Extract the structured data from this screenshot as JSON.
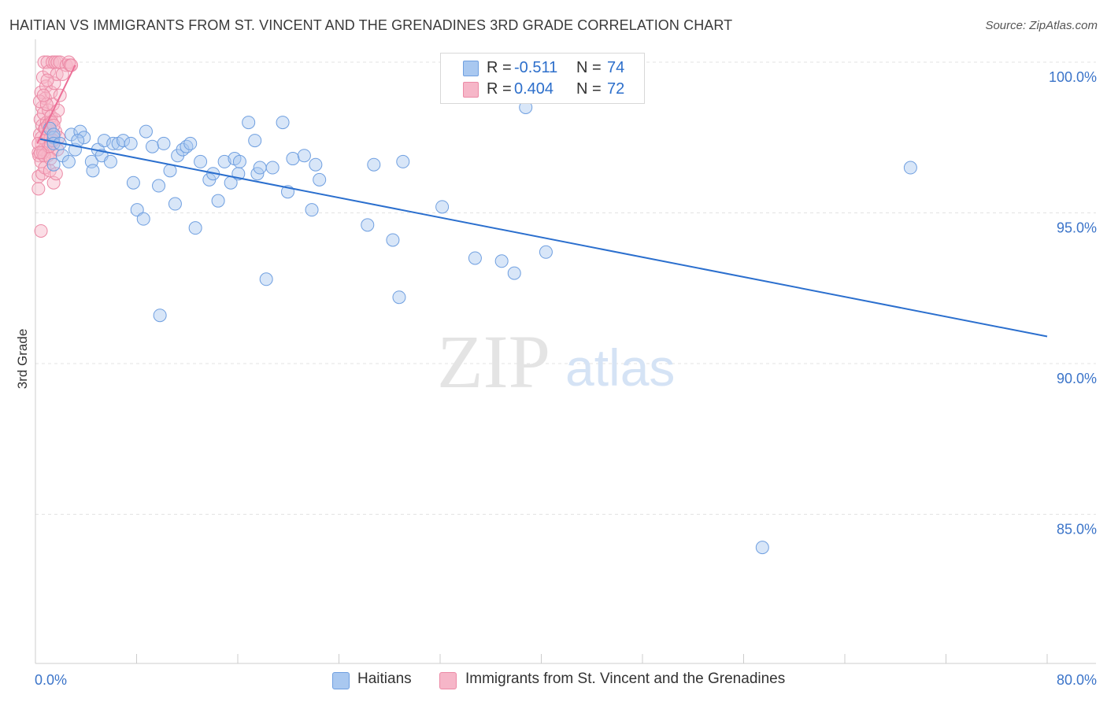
{
  "title": "HAITIAN VS IMMIGRANTS FROM ST. VINCENT AND THE GRENADINES 3RD GRADE CORRELATION CHART",
  "source": "Source: ZipAtlas.com",
  "watermark": {
    "zip": "ZIP",
    "atlas": "atlas"
  },
  "colors": {
    "blue_fill": "#a9c8f0",
    "blue_stroke": "#6f9fe0",
    "blue_line": "#2b6fce",
    "pink_fill": "#f6b6c8",
    "pink_stroke": "#ec8aa6",
    "pink_line": "#ec6f97",
    "axis_text": "#3b74c9",
    "grid": "#e3e3e3"
  },
  "legend_top": {
    "series": [
      {
        "r_label": "R = ",
        "r_value": "-0.511",
        "n_label": "N = ",
        "n_value": "74",
        "color": "blue"
      },
      {
        "r_label": "R = ",
        "r_value": "0.404",
        "n_label": "N = ",
        "n_value": "72",
        "color": "pink"
      }
    ]
  },
  "legend_bottom": [
    "Haitians",
    "Immigrants from St. Vincent and the Grenadines"
  ],
  "chart_data": {
    "type": "scatter",
    "title": "HAITIAN VS IMMIGRANTS FROM ST. VINCENT AND THE GRENADINES 3RD GRADE CORRELATION CHART",
    "ylabel": "3rd Grade",
    "xlabel": "",
    "xlim": [
      0,
      80
    ],
    "ylim": [
      80.0,
      100.8
    ],
    "x_tick_labels": [
      "0.0%",
      "80.0%"
    ],
    "y_ticks": [
      100.0,
      95.0,
      90.0,
      85.0
    ],
    "y_tick_labels": [
      "100.0%",
      "95.0%",
      "90.0%",
      "85.0%"
    ],
    "grid": true,
    "legend_position": "top-center",
    "series": [
      {
        "name": "Haitians",
        "color": "blue",
        "trend": {
          "x": [
            0.4,
            80.0
          ],
          "y": [
            97.45,
            90.9
          ]
        },
        "points": [
          [
            1.2,
            97.8
          ],
          [
            1.5,
            97.5
          ],
          [
            1.5,
            97.6
          ],
          [
            1.5,
            97.3
          ],
          [
            1.5,
            96.6
          ],
          [
            2.2,
            96.9
          ],
          [
            2.7,
            96.7
          ],
          [
            2.9,
            97.6
          ],
          [
            3.2,
            97.1
          ],
          [
            3.6,
            97.7
          ],
          [
            3.9,
            97.5
          ],
          [
            4.5,
            96.7
          ],
          [
            4.6,
            96.4
          ],
          [
            5.0,
            97.1
          ],
          [
            5.3,
            96.9
          ],
          [
            5.5,
            97.4
          ],
          [
            6.0,
            96.7
          ],
          [
            6.2,
            97.3
          ],
          [
            6.6,
            97.3
          ],
          [
            7.0,
            97.4
          ],
          [
            7.6,
            97.3
          ],
          [
            7.8,
            96.0
          ],
          [
            8.1,
            95.1
          ],
          [
            8.8,
            97.7
          ],
          [
            8.6,
            94.8
          ],
          [
            9.3,
            97.2
          ],
          [
            9.8,
            95.9
          ],
          [
            9.9,
            91.6
          ],
          [
            10.2,
            97.3
          ],
          [
            10.7,
            96.4
          ],
          [
            11.1,
            95.3
          ],
          [
            11.3,
            96.9
          ],
          [
            11.7,
            97.1
          ],
          [
            12.0,
            97.2
          ],
          [
            12.3,
            97.3
          ],
          [
            12.7,
            94.5
          ],
          [
            13.1,
            96.7
          ],
          [
            13.8,
            96.1
          ],
          [
            14.1,
            96.3
          ],
          [
            14.5,
            95.4
          ],
          [
            15.0,
            96.7
          ],
          [
            15.5,
            96.0
          ],
          [
            15.8,
            96.8
          ],
          [
            16.1,
            96.3
          ],
          [
            16.2,
            96.7
          ],
          [
            16.9,
            98.0
          ],
          [
            17.4,
            97.4
          ],
          [
            17.6,
            96.3
          ],
          [
            17.8,
            96.5
          ],
          [
            18.3,
            92.8
          ],
          [
            18.8,
            96.5
          ],
          [
            19.6,
            98.0
          ],
          [
            20.0,
            95.7
          ],
          [
            20.4,
            96.8
          ],
          [
            21.3,
            96.9
          ],
          [
            21.9,
            95.1
          ],
          [
            22.2,
            96.6
          ],
          [
            22.5,
            96.1
          ],
          [
            26.3,
            94.6
          ],
          [
            26.8,
            96.6
          ],
          [
            28.3,
            94.1
          ],
          [
            28.8,
            92.2
          ],
          [
            29.1,
            96.7
          ],
          [
            32.2,
            95.2
          ],
          [
            34.8,
            93.5
          ],
          [
            36.9,
            93.4
          ],
          [
            37.9,
            93.0
          ],
          [
            38.8,
            98.5
          ],
          [
            40.4,
            93.7
          ],
          [
            32.6,
            100.0
          ],
          [
            69.2,
            96.5
          ],
          [
            57.5,
            83.9
          ],
          [
            2.0,
            97.3
          ],
          [
            3.4,
            97.4
          ]
        ]
      },
      {
        "name": "Immigrants from St. Vincent and the Grenadines",
        "color": "pink",
        "trend": {
          "x": [
            0.2,
            3.2
          ],
          "y": [
            97.3,
            99.9
          ]
        },
        "points": [
          [
            0.3,
            96.2
          ],
          [
            0.3,
            97.0
          ],
          [
            0.3,
            95.8
          ],
          [
            0.35,
            96.9
          ],
          [
            0.4,
            97.6
          ],
          [
            0.45,
            98.1
          ],
          [
            0.5,
            99.0
          ],
          [
            0.5,
            96.7
          ],
          [
            0.55,
            97.3
          ],
          [
            0.6,
            98.5
          ],
          [
            0.6,
            97.9
          ],
          [
            0.6,
            96.3
          ],
          [
            0.65,
            99.5
          ],
          [
            0.7,
            97.1
          ],
          [
            0.7,
            98.3
          ],
          [
            0.75,
            100.0
          ],
          [
            0.8,
            97.8
          ],
          [
            0.8,
            96.5
          ],
          [
            0.85,
            98.8
          ],
          [
            0.9,
            97.4
          ],
          [
            0.9,
            99.2
          ],
          [
            0.95,
            98.0
          ],
          [
            1.0,
            97.6
          ],
          [
            1.0,
            100.0
          ],
          [
            1.05,
            96.9
          ],
          [
            1.1,
            98.4
          ],
          [
            1.1,
            97.2
          ],
          [
            1.15,
            99.7
          ],
          [
            1.2,
            98.0
          ],
          [
            1.2,
            96.4
          ],
          [
            1.25,
            97.5
          ],
          [
            1.3,
            99.0
          ],
          [
            1.3,
            98.2
          ],
          [
            1.35,
            97.0
          ],
          [
            1.4,
            100.0
          ],
          [
            1.45,
            98.6
          ],
          [
            1.5,
            97.3
          ],
          [
            1.5,
            96.0
          ],
          [
            1.55,
            99.3
          ],
          [
            1.6,
            98.1
          ],
          [
            1.6,
            100.0
          ],
          [
            1.65,
            97.7
          ],
          [
            1.7,
            96.3
          ],
          [
            1.75,
            99.6
          ],
          [
            1.8,
            97.1
          ],
          [
            1.8,
            100.0
          ],
          [
            1.85,
            98.4
          ],
          [
            1.9,
            97.5
          ],
          [
            2.0,
            100.0
          ],
          [
            2.0,
            98.9
          ],
          [
            0.5,
            94.4
          ],
          [
            0.4,
            98.7
          ],
          [
            0.55,
            97.5
          ],
          [
            0.65,
            97.0
          ],
          [
            0.75,
            96.9
          ],
          [
            0.85,
            97.8
          ],
          [
            0.95,
            98.6
          ],
          [
            1.05,
            97.9
          ],
          [
            1.15,
            97.2
          ],
          [
            1.25,
            96.8
          ],
          [
            1.35,
            98.0
          ],
          [
            1.45,
            97.4
          ],
          [
            2.5,
            99.9
          ],
          [
            2.7,
            100.0
          ],
          [
            2.8,
            99.9
          ],
          [
            2.9,
            99.9
          ],
          [
            0.3,
            97.3
          ],
          [
            0.7,
            98.9
          ],
          [
            1.0,
            99.4
          ],
          [
            1.5,
            97.9
          ],
          [
            2.2,
            99.6
          ],
          [
            0.45,
            97.0
          ]
        ]
      }
    ]
  }
}
